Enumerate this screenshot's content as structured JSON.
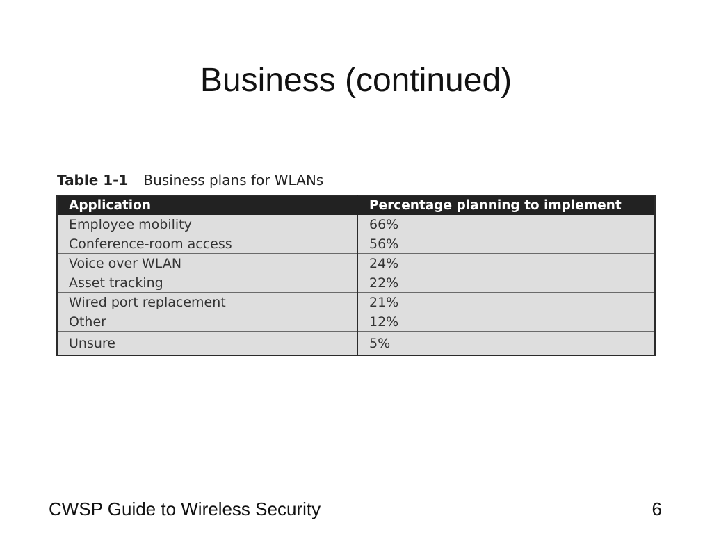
{
  "slide": {
    "title": "Business (continued)",
    "footer": "CWSP Guide to Wireless Security",
    "page_number": "6"
  },
  "table": {
    "caption_label": "Table 1-1",
    "caption_text": "Business plans for WLANs",
    "headers": [
      "Application",
      "Percentage planning to implement"
    ],
    "rows": [
      [
        "Employee mobility",
        "66%"
      ],
      [
        "Conference-room access",
        "56%"
      ],
      [
        "Voice over WLAN",
        "24%"
      ],
      [
        "Asset tracking",
        "22%"
      ],
      [
        "Wired port replacement",
        "21%"
      ],
      [
        "Other",
        "12%"
      ],
      [
        "Unsure",
        "5%"
      ]
    ]
  }
}
